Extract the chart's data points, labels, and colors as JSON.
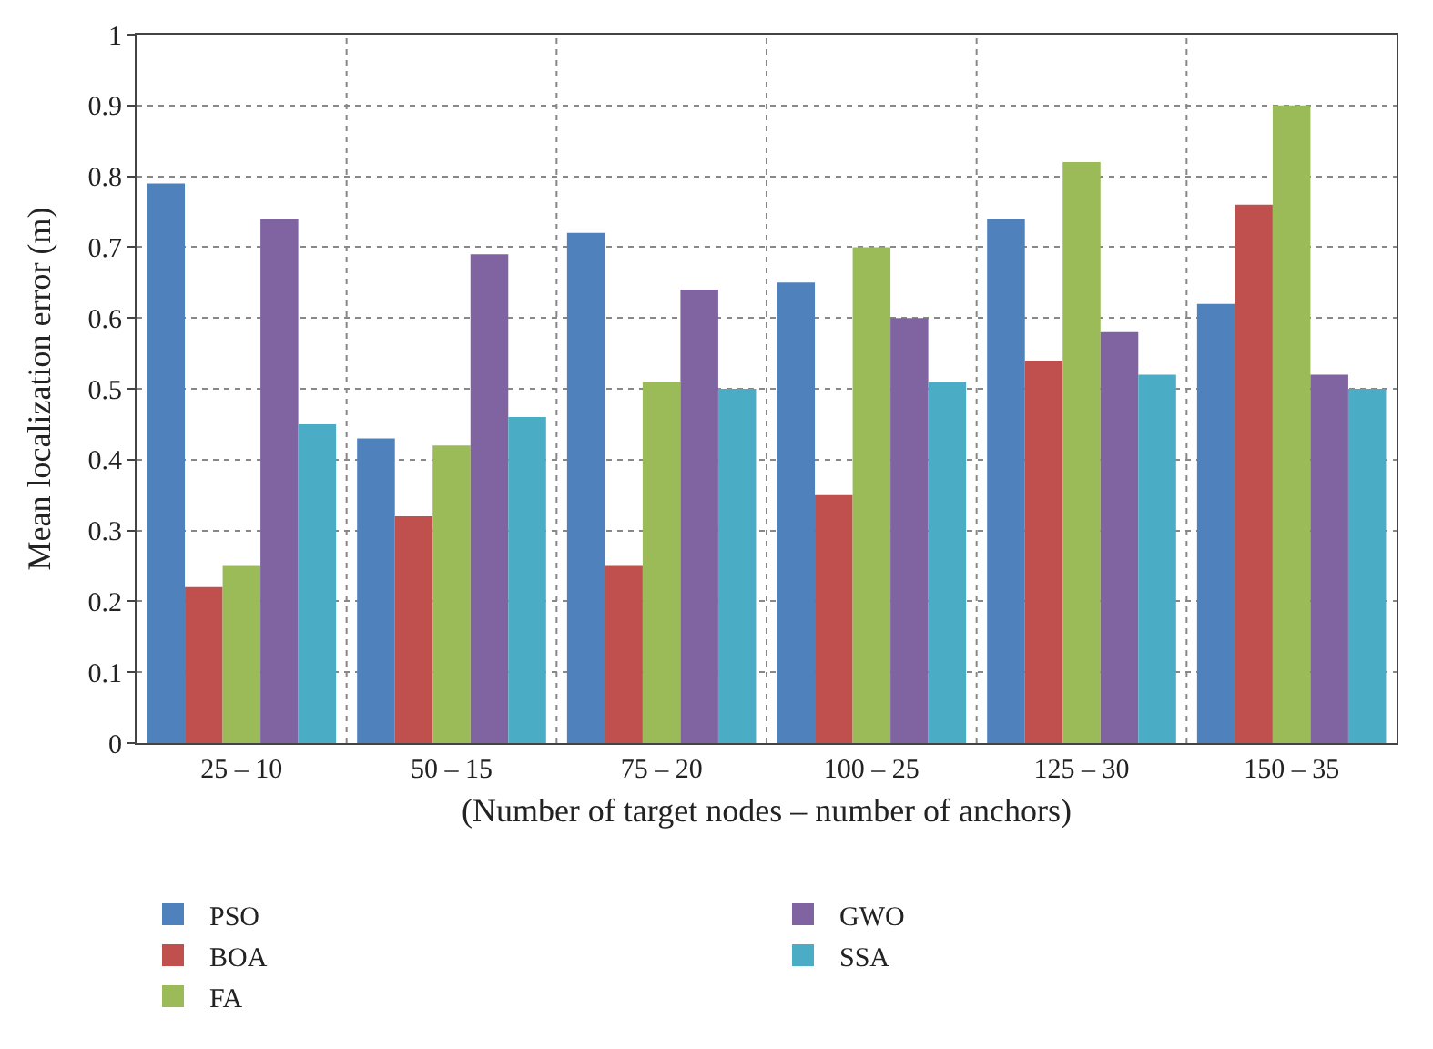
{
  "chart_data": {
    "type": "bar",
    "xlabel": "(Number of target nodes – number of anchors)",
    "ylabel": "Mean localization error (m)",
    "categories": [
      "25 – 10",
      "50 – 15",
      "75 – 20",
      "100 – 25",
      "125 – 30",
      "150 – 35"
    ],
    "series": [
      {
        "name": "PSO",
        "color": "#4f81bd",
        "values": [
          0.79,
          0.43,
          0.72,
          0.65,
          0.74,
          0.62
        ]
      },
      {
        "name": "BOA",
        "color": "#c0504d",
        "values": [
          0.22,
          0.32,
          0.25,
          0.35,
          0.54,
          0.76
        ]
      },
      {
        "name": "FA",
        "color": "#9bbb59",
        "values": [
          0.25,
          0.42,
          0.51,
          0.7,
          0.82,
          0.9
        ]
      },
      {
        "name": "GWO",
        "color": "#8064a2",
        "values": [
          0.74,
          0.69,
          0.64,
          0.6,
          0.58,
          0.52
        ]
      },
      {
        "name": "SSA",
        "color": "#4bacc6",
        "values": [
          0.45,
          0.46,
          0.5,
          0.51,
          0.52,
          0.5
        ]
      }
    ],
    "ylim": [
      0,
      1
    ],
    "yticks": [
      0,
      0.1,
      0.2,
      0.3,
      0.4,
      0.5,
      0.6,
      0.7,
      0.8,
      0.9,
      1
    ],
    "grid": true,
    "legend": "bottom"
  }
}
